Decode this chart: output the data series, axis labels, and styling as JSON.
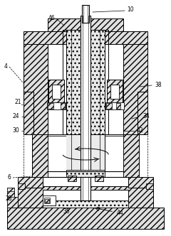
{
  "bg_color": "#ffffff",
  "fig_width": 2.4,
  "fig_height": 3.32,
  "dpi": 100
}
